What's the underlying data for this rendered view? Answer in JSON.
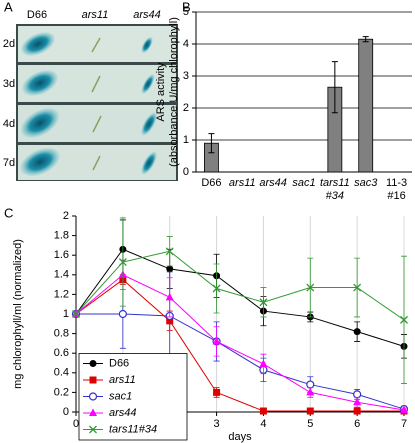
{
  "panel_a": {
    "label": "A",
    "columns": [
      "D66",
      "ars11",
      "ars44"
    ],
    "rows": [
      "2d",
      "3d",
      "4d",
      "7d"
    ]
  },
  "chart_data": [
    {
      "type": "bar",
      "panel": "B",
      "ylabel": [
        "ARS activity",
        "(absorbance U/mg chlorophyll)"
      ],
      "categories": [
        [
          "D66"
        ],
        [
          "ars11"
        ],
        [
          "ars44"
        ],
        [
          "sac1"
        ],
        [
          "tars11",
          "#34"
        ],
        [
          "sac3"
        ],
        [
          "11-3",
          "#16"
        ]
      ],
      "italic": [
        false,
        true,
        true,
        true,
        true,
        true,
        false
      ],
      "values": [
        0.9,
        0,
        0,
        0,
        2.65,
        4.15,
        0
      ],
      "errors": [
        0.3,
        0,
        0,
        0,
        0.8,
        0.08,
        0
      ],
      "color": "#808080",
      "ylim": [
        0,
        5
      ],
      "yticks": [
        0,
        1,
        2,
        3,
        4,
        5
      ],
      "grid": true
    },
    {
      "type": "line",
      "panel": "C",
      "ylabel": "mg chlorophyll/ml (normalized)",
      "xlabel": "days",
      "x": [
        0,
        1,
        2,
        3,
        4,
        5,
        6,
        7
      ],
      "xlim": [
        0,
        7
      ],
      "xticks": [
        0,
        1,
        2,
        3,
        4,
        5,
        6,
        7
      ],
      "ylim": [
        0,
        2
      ],
      "yticks": [
        0,
        0.2,
        0.4,
        0.6,
        0.8,
        1,
        1.2,
        1.4,
        1.6,
        1.8,
        2
      ],
      "grid": "x",
      "legend": "lower left",
      "series": [
        {
          "name": "D66",
          "italic": false,
          "color": "#000000",
          "marker": "circle",
          "values": [
            1,
            1.66,
            1.46,
            1.39,
            1.03,
            0.97,
            0.82,
            0.67
          ],
          "errors": [
            0,
            0.3,
            0.2,
            0.22,
            0.15,
            0.05,
            0.1,
            0.12
          ]
        },
        {
          "name": "ars11",
          "italic": true,
          "color": "#e00000",
          "marker": "square",
          "values": [
            1,
            1.35,
            0.93,
            0.2,
            0.01,
            0.01,
            0.01,
            0.01
          ],
          "errors": [
            0,
            0.05,
            0.1,
            0.05,
            0,
            0,
            0,
            0
          ]
        },
        {
          "name": "sac1",
          "italic": true,
          "color": "#3333cc",
          "marker": "circle-open",
          "values": [
            1,
            1.0,
            0.98,
            0.72,
            0.43,
            0.28,
            0.18,
            0.03
          ],
          "errors": [
            0,
            0.35,
            0.45,
            0.2,
            0.12,
            0.08,
            0.05,
            0.03
          ]
        },
        {
          "name": "ars44",
          "italic": true,
          "color": "#ff00ff",
          "marker": "triangle",
          "values": [
            1,
            1.4,
            1.17,
            0.72,
            0.49,
            0.2,
            0.1,
            0.02
          ],
          "errors": [
            0,
            0.15,
            0.2,
            0.15,
            0.1,
            0.05,
            0.05,
            0.02
          ]
        },
        {
          "name": "tars11#34",
          "italic": true,
          "color": "#339933",
          "marker": "x",
          "values": [
            1,
            1.53,
            1.64,
            1.26,
            1.12,
            1.27,
            1.27,
            0.94
          ],
          "errors": [
            0,
            0.45,
            0.15,
            0.25,
            0.15,
            0.3,
            0.3,
            0.65
          ]
        }
      ]
    }
  ]
}
